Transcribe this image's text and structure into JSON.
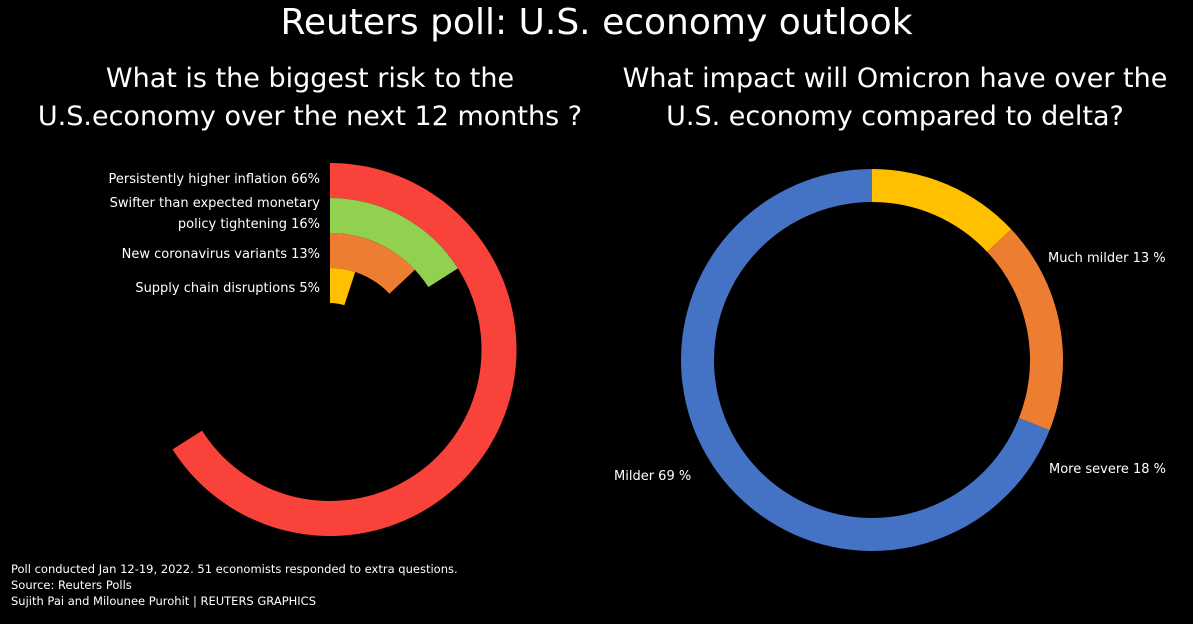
{
  "title": "Reuters poll: U.S. economy outlook",
  "chart_data": [
    {
      "type": "radial-bar",
      "title": "What is the biggest risk to the U.S.economy over the next 12 months ?",
      "categories": [
        "Persistently higher inflation",
        "Swifter than expected monetary policy tightening",
        "New coronavirus variants",
        "Supply chain disruptions"
      ],
      "labels": [
        "Persistently higher inflation 66%",
        "Swifter than expected monetary",
        "policy tightening 16%",
        "New coronavirus variants 13%",
        "Supply chain disruptions 5%"
      ],
      "values": [
        66,
        16,
        13,
        5
      ],
      "colors": [
        "#F9423A",
        "#92D050",
        "#ED7D31",
        "#FFC000"
      ]
    },
    {
      "type": "pie",
      "title": "What impact will Omicron have over the U.S. economy compared to delta?",
      "categories": [
        "Much milder",
        "More severe",
        "Milder"
      ],
      "labels": [
        "Much milder 13 %",
        "More severe 18 %",
        "Milder 69 %"
      ],
      "values": [
        13,
        18,
        69
      ],
      "colors": [
        "#FFC000",
        "#ED7D31",
        "#4472C4"
      ]
    }
  ],
  "notes": [
    "Poll conducted Jan 12-19, 2022.  51 economists responded to extra questions.",
    "Source: Reuters Polls",
    "Sujith Pai and Milounee Purohit | REUTERS GRAPHICS"
  ]
}
